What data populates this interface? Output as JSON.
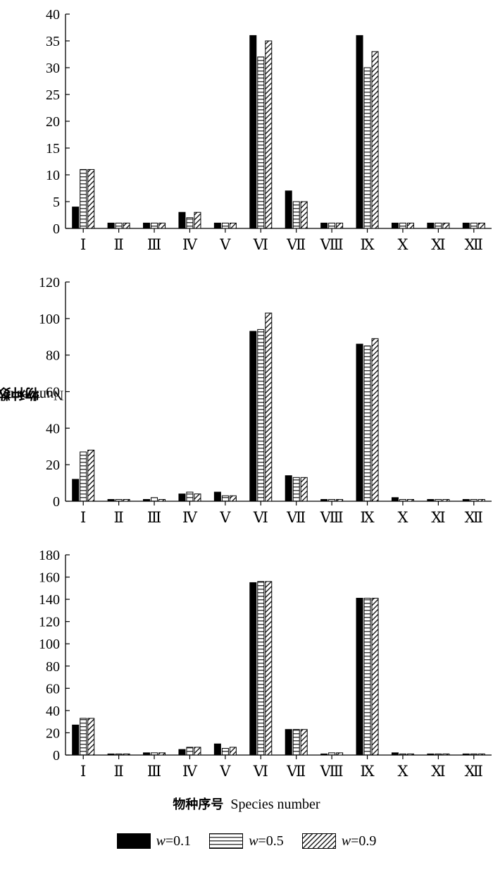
{
  "chart_data": {
    "type": "bar",
    "categories": [
      "Ⅰ",
      "Ⅱ",
      "Ⅲ",
      "Ⅳ",
      "Ⅴ",
      "Ⅵ",
      "Ⅶ",
      "Ⅷ",
      "Ⅸ",
      "Ⅹ",
      "Ⅺ",
      "Ⅻ"
    ],
    "ylabel_zh": "物种数量",
    "ylabel_en": "Number of species",
    "xlabel_zh": "物种序号",
    "xlabel_en": "Species number",
    "legend_placement": "bottom",
    "grid": false,
    "legend": [
      {
        "symbol": "w",
        "label": "=0.1",
        "pattern": "solid"
      },
      {
        "symbol": "w",
        "label": "=0.5",
        "pattern": "horizontal-lines"
      },
      {
        "symbol": "w",
        "label": "=0.9",
        "pattern": "diagonal-lines"
      }
    ],
    "panels": [
      {
        "ylim": [
          0,
          40
        ],
        "yticks": [
          0,
          5,
          10,
          15,
          20,
          25,
          30,
          35,
          40
        ],
        "series": [
          {
            "name": "w=0.1",
            "values": [
              4,
              1,
              1,
              3,
              1,
              36,
              7,
              1,
              36,
              1,
              1,
              1
            ]
          },
          {
            "name": "w=0.5",
            "values": [
              11,
              1,
              1,
              2,
              1,
              32,
              5,
              1,
              30,
              1,
              1,
              1
            ]
          },
          {
            "name": "w=0.9",
            "values": [
              11,
              1,
              1,
              3,
              1,
              35,
              5,
              1,
              33,
              1,
              1,
              1
            ]
          }
        ]
      },
      {
        "ylim": [
          0,
          120
        ],
        "yticks": [
          0,
          20,
          40,
          60,
          80,
          100,
          120
        ],
        "series": [
          {
            "name": "w=0.1",
            "values": [
              12,
              1,
              1,
              4,
              5,
              93,
              14,
              1,
              86,
              2,
              1,
              1
            ]
          },
          {
            "name": "w=0.5",
            "values": [
              27,
              1,
              2,
              5,
              3,
              94,
              13,
              1,
              85,
              1,
              1,
              1
            ]
          },
          {
            "name": "w=0.9",
            "values": [
              28,
              1,
              1,
              4,
              3,
              103,
              13,
              1,
              89,
              1,
              1,
              1
            ]
          }
        ]
      },
      {
        "ylim": [
          0,
          180
        ],
        "yticks": [
          0,
          20,
          40,
          60,
          80,
          100,
          120,
          140,
          160,
          180
        ],
        "series": [
          {
            "name": "w=0.1",
            "values": [
              27,
              1,
              2,
              5,
              10,
              155,
              23,
              1,
              141,
              2,
              1,
              1
            ]
          },
          {
            "name": "w=0.5",
            "values": [
              33,
              1,
              2,
              7,
              6,
              156,
              23,
              2,
              141,
              1,
              1,
              1
            ]
          },
          {
            "name": "w=0.9",
            "values": [
              33,
              1,
              2,
              7,
              7,
              156,
              23,
              2,
              141,
              1,
              1,
              1
            ]
          }
        ]
      }
    ]
  }
}
